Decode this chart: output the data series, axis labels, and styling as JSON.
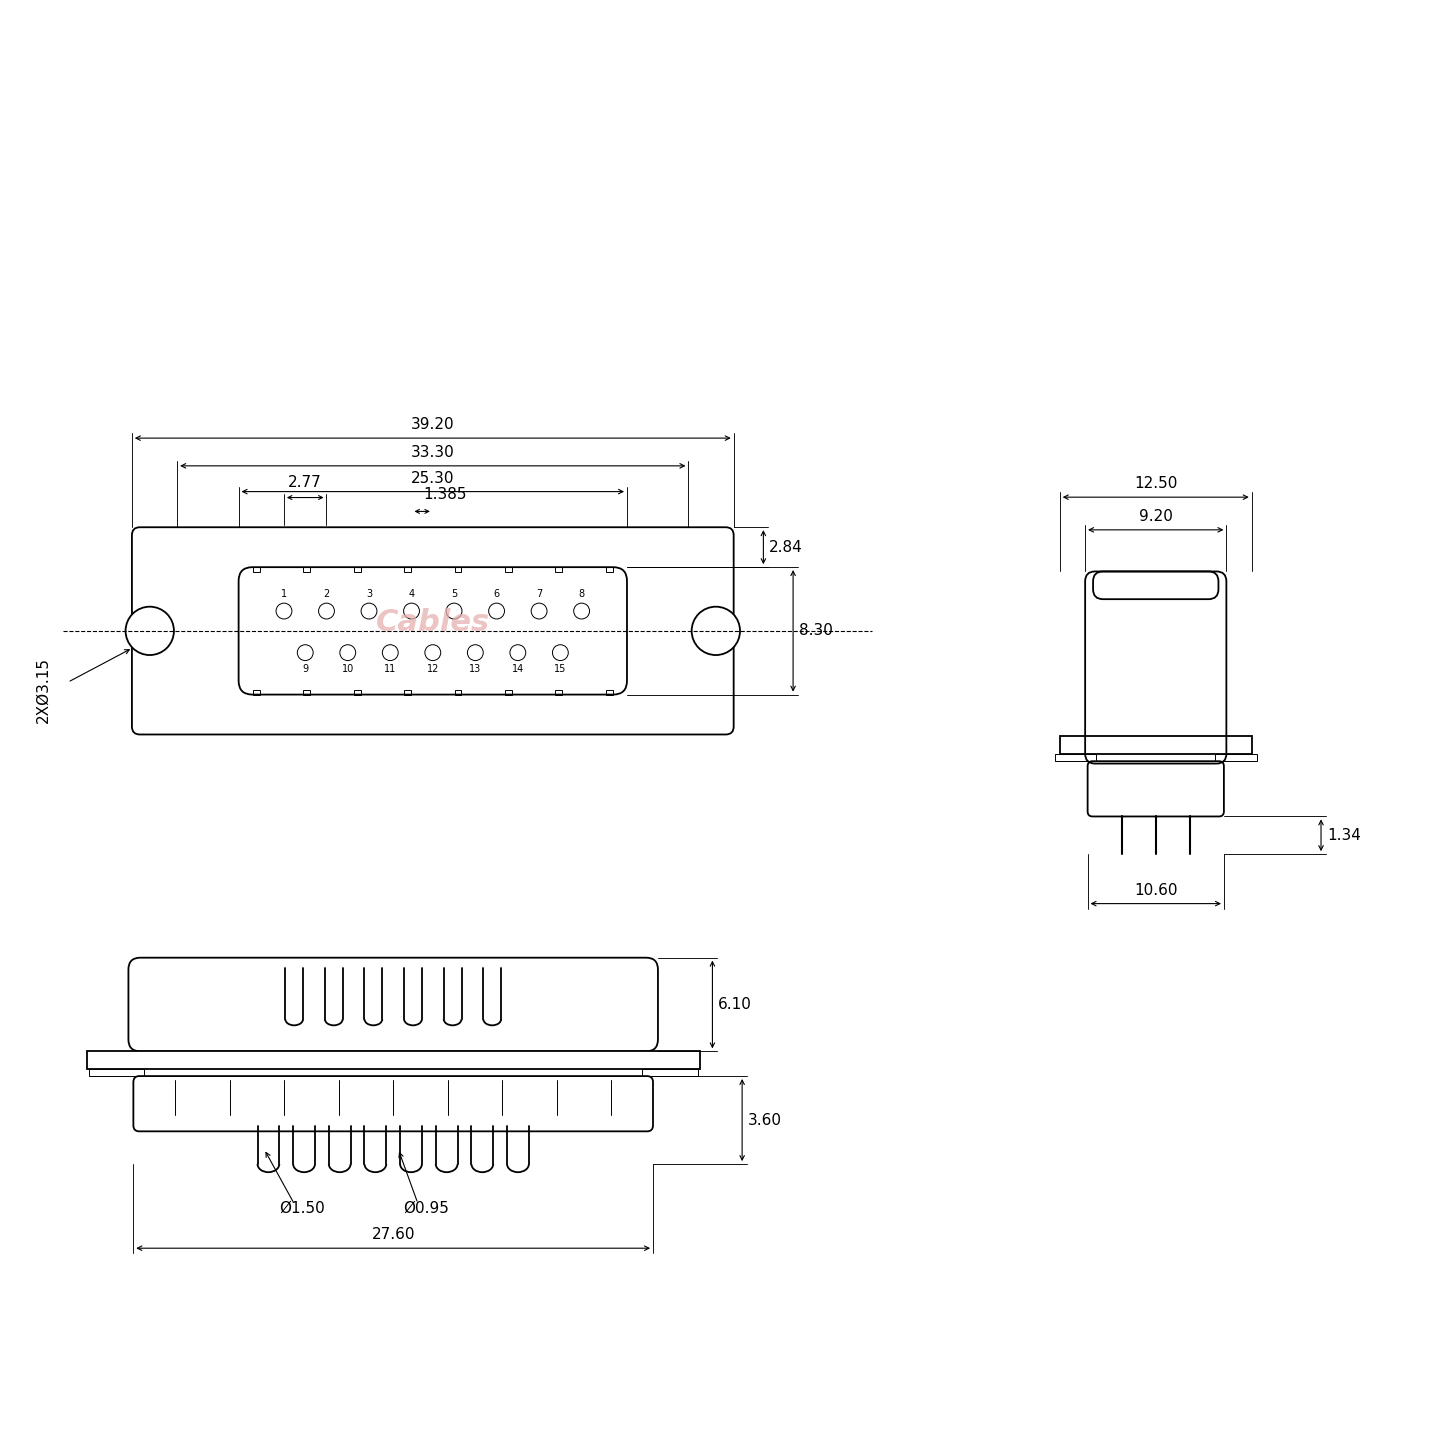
{
  "bg_color": "#ffffff",
  "lc": "#000000",
  "wm_color": "#e8b0b0",
  "annotations": {
    "top_39_20": "39.20",
    "top_33_30": "33.30",
    "top_25_30": "25.30",
    "top_2_77": "2.77",
    "top_1_385": "1.385",
    "top_2_84": "2.84",
    "top_8_30": "8.30",
    "top_2xhole": "2XØ3.15",
    "front_6_10": "6.10",
    "front_3_60": "3.60",
    "front_dia150": "Ø1.50",
    "front_dia095": "Ø0.95",
    "front_27_60": "27.60",
    "side_12_50": "12.50",
    "side_9_20": "9.20",
    "side_10_60": "10.60",
    "side_1_34": "1.34"
  },
  "fs": 11,
  "fs_small": 7,
  "lw": 1.3,
  "lw_dim": 0.8,
  "lw_thin": 0.7
}
